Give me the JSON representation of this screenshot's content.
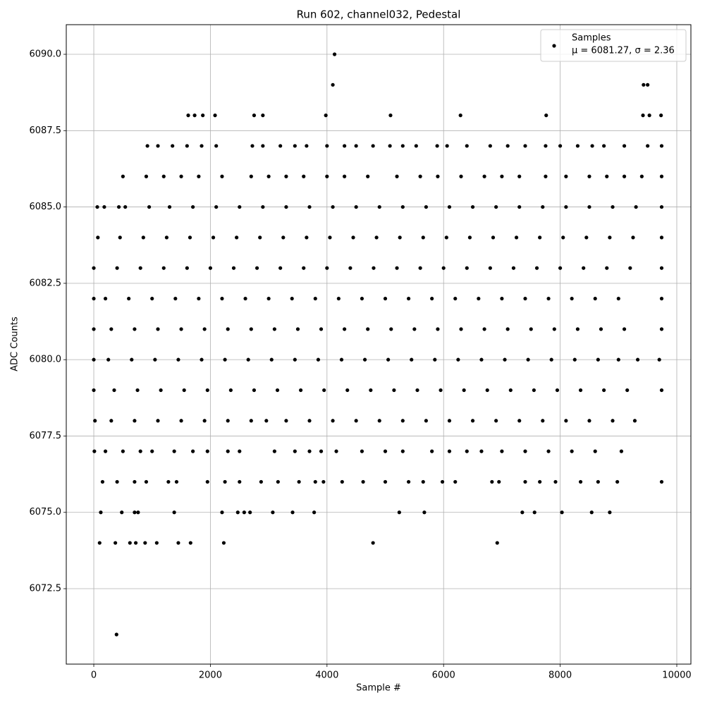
{
  "chart_data": {
    "type": "scatter",
    "title": "Run 602, channel032, Pedestal",
    "xlabel": "Sample #",
    "ylabel": "ADC Counts",
    "xlim": [
      -472,
      10242
    ],
    "ylim": [
      6070.03,
      6090.97
    ],
    "xticks": [
      0,
      2000,
      4000,
      6000,
      8000,
      10000
    ],
    "yticks": [
      6072.5,
      {
        "value": 6075,
        "label": "6075.0"
      },
      6077.5,
      {
        "value": 6080,
        "label": "6080.0"
      },
      6082.5,
      {
        "value": 6085,
        "label": "6085.0"
      },
      6087.5,
      {
        "value": 6090,
        "label": "6090.0"
      }
    ],
    "grid": true,
    "legend": "upper right",
    "legend_text": "μ = 6081.27, σ = 2.36",
    "series": [
      {
        "name": "Samples",
        "color": "#000000",
        "x": [
          0,
          400,
          800,
          1200,
          1600,
          2000,
          2400,
          2800,
          3200,
          3600,
          4000,
          4400,
          4800,
          5200,
          5600,
          6000,
          6400,
          6800,
          7200,
          7600,
          8000,
          8400,
          8800,
          9200,
          9740,
          0,
          200,
          600,
          1000,
          1400,
          1800,
          2200,
          2600,
          3000,
          3400,
          3800,
          4200,
          4600,
          5000,
          5400,
          5800,
          6200,
          6600,
          7000,
          7400,
          7800,
          8200,
          8600,
          9000,
          9740,
          0,
          300,
          700,
          1100,
          1500,
          1900,
          2300,
          2700,
          3100,
          3500,
          3900,
          4300,
          4700,
          5100,
          5500,
          5900,
          6300,
          6700,
          7100,
          7500,
          7900,
          8300,
          8700,
          9100,
          9740,
          0,
          250,
          650,
          1050,
          1450,
          1850,
          2250,
          2650,
          3050,
          3450,
          3850,
          4250,
          4650,
          5050,
          5450,
          5850,
          6250,
          6650,
          7050,
          7450,
          7850,
          8250,
          8650,
          9000,
          9330,
          9700,
          0,
          350,
          750,
          1150,
          1550,
          1950,
          2350,
          2750,
          3150,
          3550,
          3950,
          4350,
          4750,
          5150,
          5550,
          5950,
          6350,
          6750,
          7150,
          7550,
          7950,
          8350,
          8750,
          9150,
          9740,
          20,
          300,
          700,
          1100,
          1500,
          1900,
          2300,
          2700,
          2960,
          3300,
          3700,
          4100,
          4500,
          4900,
          5300,
          5700,
          6100,
          6500,
          6900,
          7300,
          7700,
          8100,
          8500,
          8900,
          9280,
          70,
          450,
          850,
          1250,
          1650,
          2050,
          2450,
          2850,
          3250,
          3650,
          4050,
          4450,
          4850,
          5250,
          5650,
          6050,
          6450,
          6850,
          7250,
          7650,
          8050,
          8450,
          8850,
          9250,
          9740,
          10,
          200,
          500,
          800,
          1000,
          1380,
          1700,
          1950,
          2300,
          2500,
          3100,
          3450,
          3700,
          3900,
          4160,
          4600,
          5000,
          5300,
          5800,
          6100,
          6400,
          6650,
          7000,
          7400,
          7800,
          8200,
          8600,
          9050,
          60,
          180,
          430,
          540,
          950,
          1300,
          1700,
          2100,
          2500,
          2900,
          3300,
          3700,
          4100,
          4500,
          4900,
          5300,
          5700,
          6100,
          6500,
          6900,
          7300,
          7700,
          8100,
          8500,
          8900,
          9300,
          9740,
          150,
          400,
          700,
          900,
          1280,
          1420,
          1950,
          2250,
          2500,
          2870,
          3160,
          3520,
          3800,
          3940,
          4260,
          4620,
          5000,
          5400,
          5650,
          5980,
          6200,
          6830,
          6950,
          7400,
          7650,
          7920,
          8350,
          8650,
          8980,
          9740,
          500,
          900,
          1200,
          1500,
          1800,
          2200,
          2700,
          3000,
          3300,
          3600,
          4000,
          4300,
          4700,
          5200,
          5600,
          5900,
          6300,
          6700,
          7000,
          7300,
          7750,
          8100,
          8500,
          8800,
          9100,
          9400,
          9740,
          120,
          480,
          700,
          760,
          1380,
          2200,
          2470,
          2580,
          2680,
          3070,
          3410,
          3780,
          5240,
          5670,
          7350,
          7560,
          8030,
          8540,
          8850,
          920,
          1100,
          1350,
          1600,
          1850,
          2100,
          2720,
          2900,
          3200,
          3450,
          3650,
          4000,
          4300,
          4500,
          4790,
          5080,
          5300,
          5530,
          5890,
          6060,
          6400,
          6800,
          7100,
          7400,
          7750,
          8000,
          8300,
          8550,
          8750,
          9100,
          9500,
          9740,
          100,
          370,
          620,
          720,
          880,
          1080,
          1450,
          1660,
          2230,
          4790,
          6920,
          1620,
          1730,
          1870,
          2080,
          2750,
          2900,
          3980,
          5090,
          6290,
          7760,
          9420,
          9530,
          9730,
          4100,
          9430,
          9500,
          4130,
          390
        ],
        "values": [
          6083,
          6083,
          6083,
          6083,
          6083,
          6083,
          6083,
          6083,
          6083,
          6083,
          6083,
          6083,
          6083,
          6083,
          6083,
          6083,
          6083,
          6083,
          6083,
          6083,
          6083,
          6083,
          6083,
          6083,
          6083,
          6082,
          6082,
          6082,
          6082,
          6082,
          6082,
          6082,
          6082,
          6082,
          6082,
          6082,
          6082,
          6082,
          6082,
          6082,
          6082,
          6082,
          6082,
          6082,
          6082,
          6082,
          6082,
          6082,
          6082,
          6082,
          6081,
          6081,
          6081,
          6081,
          6081,
          6081,
          6081,
          6081,
          6081,
          6081,
          6081,
          6081,
          6081,
          6081,
          6081,
          6081,
          6081,
          6081,
          6081,
          6081,
          6081,
          6081,
          6081,
          6081,
          6081,
          6080,
          6080,
          6080,
          6080,
          6080,
          6080,
          6080,
          6080,
          6080,
          6080,
          6080,
          6080,
          6080,
          6080,
          6080,
          6080,
          6080,
          6080,
          6080,
          6080,
          6080,
          6080,
          6080,
          6080,
          6080,
          6080,
          6079,
          6079,
          6079,
          6079,
          6079,
          6079,
          6079,
          6079,
          6079,
          6079,
          6079,
          6079,
          6079,
          6079,
          6079,
          6079,
          6079,
          6079,
          6079,
          6079,
          6079,
          6079,
          6079,
          6079,
          6079,
          6078,
          6078,
          6078,
          6078,
          6078,
          6078,
          6078,
          6078,
          6078,
          6078,
          6078,
          6078,
          6078,
          6078,
          6078,
          6078,
          6078,
          6078,
          6078,
          6078,
          6078,
          6078,
          6078,
          6078,
          6078,
          6084,
          6084,
          6084,
          6084,
          6084,
          6084,
          6084,
          6084,
          6084,
          6084,
          6084,
          6084,
          6084,
          6084,
          6084,
          6084,
          6084,
          6084,
          6084,
          6084,
          6084,
          6084,
          6084,
          6084,
          6084,
          6077,
          6077,
          6077,
          6077,
          6077,
          6077,
          6077,
          6077,
          6077,
          6077,
          6077,
          6077,
          6077,
          6077,
          6077,
          6077,
          6077,
          6077,
          6077,
          6077,
          6077,
          6077,
          6077,
          6077,
          6077,
          6077,
          6077,
          6077,
          6085,
          6085,
          6085,
          6085,
          6085,
          6085,
          6085,
          6085,
          6085,
          6085,
          6085,
          6085,
          6085,
          6085,
          6085,
          6085,
          6085,
          6085,
          6085,
          6085,
          6085,
          6085,
          6085,
          6085,
          6085,
          6085,
          6085,
          6076,
          6076,
          6076,
          6076,
          6076,
          6076,
          6076,
          6076,
          6076,
          6076,
          6076,
          6076,
          6076,
          6076,
          6076,
          6076,
          6076,
          6076,
          6076,
          6076,
          6076,
          6076,
          6076,
          6076,
          6076,
          6076,
          6076,
          6076,
          6076,
          6076,
          6086,
          6086,
          6086,
          6086,
          6086,
          6086,
          6086,
          6086,
          6086,
          6086,
          6086,
          6086,
          6086,
          6086,
          6086,
          6086,
          6086,
          6086,
          6086,
          6086,
          6086,
          6086,
          6086,
          6086,
          6086,
          6086,
          6086,
          6075,
          6075,
          6075,
          6075,
          6075,
          6075,
          6075,
          6075,
          6075,
          6075,
          6075,
          6075,
          6075,
          6075,
          6075,
          6075,
          6075,
          6075,
          6075,
          6087,
          6087,
          6087,
          6087,
          6087,
          6087,
          6087,
          6087,
          6087,
          6087,
          6087,
          6087,
          6087,
          6087,
          6087,
          6087,
          6087,
          6087,
          6087,
          6087,
          6087,
          6087,
          6087,
          6087,
          6087,
          6087,
          6087,
          6087,
          6087,
          6087,
          6087,
          6087,
          6074,
          6074,
          6074,
          6074,
          6074,
          6074,
          6074,
          6074,
          6074,
          6074,
          6074,
          6088,
          6088,
          6088,
          6088,
          6088,
          6088,
          6088,
          6088,
          6088,
          6088,
          6088,
          6088,
          6088,
          6089,
          6089,
          6089,
          6090,
          6071
        ]
      }
    ]
  }
}
